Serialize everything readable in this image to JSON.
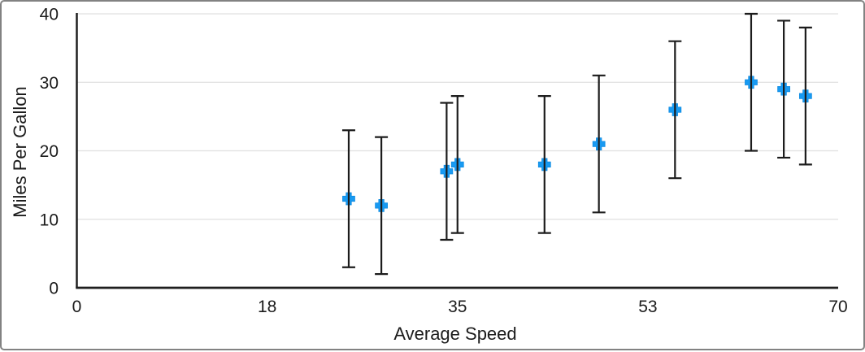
{
  "chart_data": {
    "type": "scatter",
    "title": "",
    "xlabel": "Average Speed",
    "ylabel": "Miles Per Gallon",
    "xlim": [
      0,
      70
    ],
    "ylim": [
      0,
      40
    ],
    "x_ticks": [
      {
        "value": 0,
        "label": "0"
      },
      {
        "value": 17.5,
        "label": "18"
      },
      {
        "value": 35,
        "label": "35"
      },
      {
        "value": 52.5,
        "label": "53"
      },
      {
        "value": 70,
        "label": "70"
      }
    ],
    "y_ticks": [
      {
        "value": 0,
        "label": "0"
      },
      {
        "value": 10,
        "label": "10"
      },
      {
        "value": 20,
        "label": "20"
      },
      {
        "value": 30,
        "label": "30"
      },
      {
        "value": 40,
        "label": "40"
      }
    ],
    "grid": "horizontal-only",
    "legend": "none",
    "series": [
      {
        "name": "Miles Per Gallon",
        "marker": "plus",
        "error_bars": {
          "mode": "fixed",
          "value": 10,
          "direction": "both",
          "caps": true
        },
        "points": [
          {
            "x": 25,
            "y": 13,
            "error_low": 3,
            "error_high": 23
          },
          {
            "x": 28,
            "y": 12,
            "error_low": 2,
            "error_high": 22
          },
          {
            "x": 34,
            "y": 17,
            "error_low": 7,
            "error_high": 27
          },
          {
            "x": 35,
            "y": 18,
            "error_low": 8,
            "error_high": 28
          },
          {
            "x": 43,
            "y": 18,
            "error_low": 8,
            "error_high": 28
          },
          {
            "x": 48,
            "y": 21,
            "error_low": 11,
            "error_high": 31
          },
          {
            "x": 55,
            "y": 26,
            "error_low": 16,
            "error_high": 36
          },
          {
            "x": 62,
            "y": 30,
            "error_low": 20,
            "error_high": 40
          },
          {
            "x": 65,
            "y": 29,
            "error_low": 19,
            "error_high": 39
          },
          {
            "x": 67,
            "y": 28,
            "error_low": 18,
            "error_high": 38
          }
        ]
      }
    ],
    "colors": {
      "marker": "#189af2",
      "marker_edge": "#0f8ae0",
      "error_bar": "#1c1c1c",
      "axis": "#1f1f1f",
      "gridline": "#e0e0e0",
      "text": "#1c1c1c",
      "background": "#ffffff",
      "frame_border": "#828282"
    }
  }
}
